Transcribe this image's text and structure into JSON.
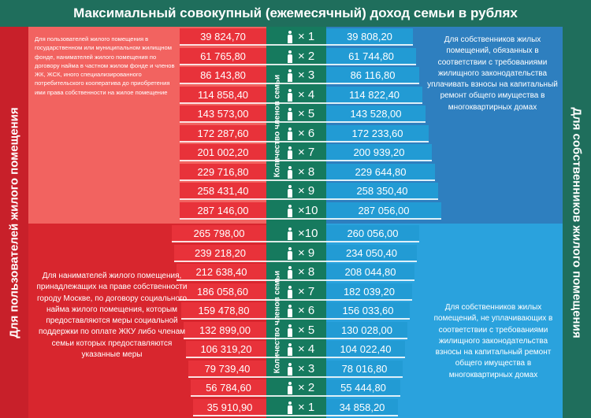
{
  "title": "Максимальный совокупный (ежемесячный) доход семьи в рублях",
  "left_strip": "Для пользователей жилого помещения",
  "right_strip": "Для собственников жилого помещения",
  "center_label": "Количество членов семьи",
  "top_left_desc": "Для пользователей жилого помещения в государственном или муниципальном жилищном фонде, нанимателей жилого помещения по договору найма в частном жилом фонде и членов ЖК, ЖСК, иного специализированного потребительского кооператива до приобретения ими права собственности на жилое помещение",
  "bottom_left_desc": "Для нанимателей жилого помещения, принадлежащих на праве собственности городу Москве, по договору социального найма жилого помещения, которым предоставляются меры социальной поддержки по оплате ЖКУ либо членам семьи которых предоставляются указанные меры",
  "top_right_desc": "Для собственников жилых помещений, обязанных в соответствии с требованиями жилищного законодательства уплачивать взносы на капитальный ремонт общего имущества в многоквартирных домах",
  "bottom_right_desc": "Для собственников жилых помещений, не уплачивающих в соответствии с требованиями жилищного законодательства взносы на капитальный ремонт общего имущества в многоквартирных домах",
  "top_rows": [
    {
      "count": "× 1",
      "left": "39 824,70",
      "right": "39 808,20"
    },
    {
      "count": "× 2",
      "left": "61 765,80",
      "right": "61 744,80"
    },
    {
      "count": "× 3",
      "left": "86 143,80",
      "right": "86 116,80"
    },
    {
      "count": "× 4",
      "left": "114 858,40",
      "right": "114 822,40"
    },
    {
      "count": "× 5",
      "left": "143 573,00",
      "right": "143 528,00"
    },
    {
      "count": "× 6",
      "left": "172 287,60",
      "right": "172 233,60"
    },
    {
      "count": "× 7",
      "left": "201 002,20",
      "right": "200 939,20"
    },
    {
      "count": "× 8",
      "left": "229 716,80",
      "right": "229 644,80"
    },
    {
      "count": "× 9",
      "left": "258 431,40",
      "right": "258 350,40"
    },
    {
      "count": "×10",
      "left": "287 146,00",
      "right": "287 056,00"
    }
  ],
  "bottom_rows": [
    {
      "count": "×10",
      "left": "265 798,00",
      "right": "260 056,00"
    },
    {
      "count": "× 9",
      "left": "239 218,20",
      "right": "234 050,40"
    },
    {
      "count": "× 8",
      "left": "212 638,40",
      "right": "208 044,80"
    },
    {
      "count": "× 7",
      "left": "186 058,60",
      "right": "182 039,20"
    },
    {
      "count": "× 6",
      "left": "159 478,80",
      "right": "156 033,60"
    },
    {
      "count": "× 5",
      "left": "132 899,00",
      "right": "130 028,00"
    },
    {
      "count": "× 4",
      "left": "106 319,20",
      "right": "104 022,40"
    },
    {
      "count": "× 3",
      "left": "79 739,40",
      "right": "78 016,80"
    },
    {
      "count": "× 2",
      "left": "56 784,60",
      "right": "55 444,80"
    },
    {
      "count": "× 1",
      "left": "35 910,90",
      "right": "34 858,20"
    }
  ],
  "colors": {
    "red": "#e8323a",
    "blue": "#229bd4",
    "green": "#1f6e5c"
  }
}
